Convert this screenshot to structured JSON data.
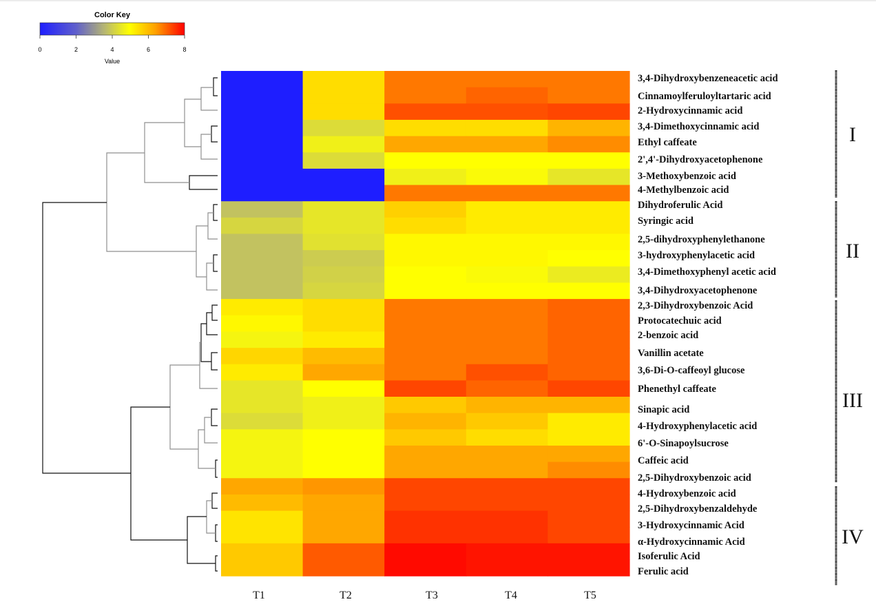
{
  "chart_data": {
    "type": "heatmap",
    "title": "",
    "color_key": {
      "title": "Color Key",
      "xlabel": "Value",
      "ticks": [
        0,
        2,
        4,
        6,
        8
      ],
      "range": [
        0,
        8
      ],
      "colors": [
        "#1e1eff",
        "#9a9a80",
        "#ffff00",
        "#ff7f00",
        "#ff0000"
      ]
    },
    "columns": [
      "T1",
      "T2",
      "T3",
      "T4",
      "T5"
    ],
    "rows": [
      "3,4-Dihydroxybenzeneacetic acid",
      "Cinnamoylferuloyltartaric  acid",
      "2-Hydroxycinnamic acid",
      "3,4-Dimethoxycinnamic acid",
      "Ethyl caffeate",
      "2',4'-Dihydroxyacetophenone",
      "3-Methoxybenzoic acid",
      "4-Methylbenzoic acid",
      "Dihydroferulic Acid",
      "Syringic acid",
      "2,5-dihydroxyphenylethanone",
      "3-hydroxyphenylacetic acid",
      "3,4-Dimethoxyphenyl acetic acid",
      "3,4-Dihydroxyacetophenone",
      "2,3-Dihydroxybenzoic Acid",
      "Protocatechuic acid",
      "2-benzoic acid",
      "Vanillin acetate",
      "3,6-Di-O-caffeoyl glucose",
      "Phenethyl caffeate",
      "Sinapic acid",
      "4-Hydroxyphenylacetic acid",
      "6'-O-Sinapoylsucrose",
      "Caffeic acid",
      "2,5-Dihydroxybenzoic acid",
      "4-Hydroxybenzoic acid",
      "2,5-Dihydroxybenzaldehyde",
      "3-Hydroxycinnamic Acid",
      "α-Hydroxycinnamic Acid",
      "Isoferulic Acid",
      "Ferulic acid"
    ],
    "values": [
      [
        0,
        5.5,
        6.8,
        6.8,
        6.8
      ],
      [
        0,
        5.5,
        6.8,
        7.0,
        6.8
      ],
      [
        0,
        5.5,
        7.2,
        7.2,
        7.3
      ],
      [
        0,
        4.3,
        5.5,
        5.5,
        6.1
      ],
      [
        0,
        4.7,
        6.3,
        6.3,
        6.6
      ],
      [
        0,
        4.3,
        5.0,
        5.0,
        5.0
      ],
      [
        0,
        0,
        4.7,
        4.9,
        4.5
      ],
      [
        0,
        0,
        6.8,
        6.8,
        6.8
      ],
      [
        3.8,
        4.5,
        5.7,
        5.3,
        5.3
      ],
      [
        4.2,
        4.5,
        5.5,
        5.3,
        5.3
      ],
      [
        3.8,
        4.4,
        5.1,
        5.1,
        5.1
      ],
      [
        3.8,
        4.0,
        5.1,
        5.1,
        5.0
      ],
      [
        3.8,
        4.1,
        5.0,
        4.9,
        4.6
      ],
      [
        3.8,
        4.2,
        5.0,
        5.0,
        5.0
      ],
      [
        5.3,
        5.5,
        6.8,
        6.8,
        7.0
      ],
      [
        5.1,
        5.5,
        6.8,
        6.8,
        7.0
      ],
      [
        4.8,
        5.3,
        6.8,
        6.8,
        7.0
      ],
      [
        5.6,
        6.0,
        6.8,
        6.8,
        7.0
      ],
      [
        5.3,
        6.3,
        6.8,
        7.2,
        7.0
      ],
      [
        4.5,
        5.0,
        7.3,
        7.0,
        7.3
      ],
      [
        4.5,
        4.7,
        5.8,
        6.1,
        6.1
      ],
      [
        4.3,
        4.7,
        6.1,
        5.8,
        5.3
      ],
      [
        4.8,
        5.0,
        5.8,
        5.5,
        5.3
      ],
      [
        4.8,
        5.0,
        6.3,
        6.3,
        6.3
      ],
      [
        4.8,
        5.0,
        6.3,
        6.3,
        6.6
      ],
      [
        6.3,
        6.5,
        7.3,
        7.3,
        7.3
      ],
      [
        6.0,
        6.3,
        7.3,
        7.3,
        7.3
      ],
      [
        5.4,
        6.3,
        7.5,
        7.5,
        7.3
      ],
      [
        5.4,
        6.3,
        7.5,
        7.5,
        7.3
      ],
      [
        5.8,
        7.1,
        7.9,
        7.8,
        7.8
      ],
      [
        5.8,
        7.1,
        7.9,
        7.8,
        7.8
      ]
    ],
    "groups": [
      {
        "label": "I"
      },
      {
        "label": "II"
      },
      {
        "label": "III"
      },
      {
        "label": "IV"
      }
    ]
  }
}
